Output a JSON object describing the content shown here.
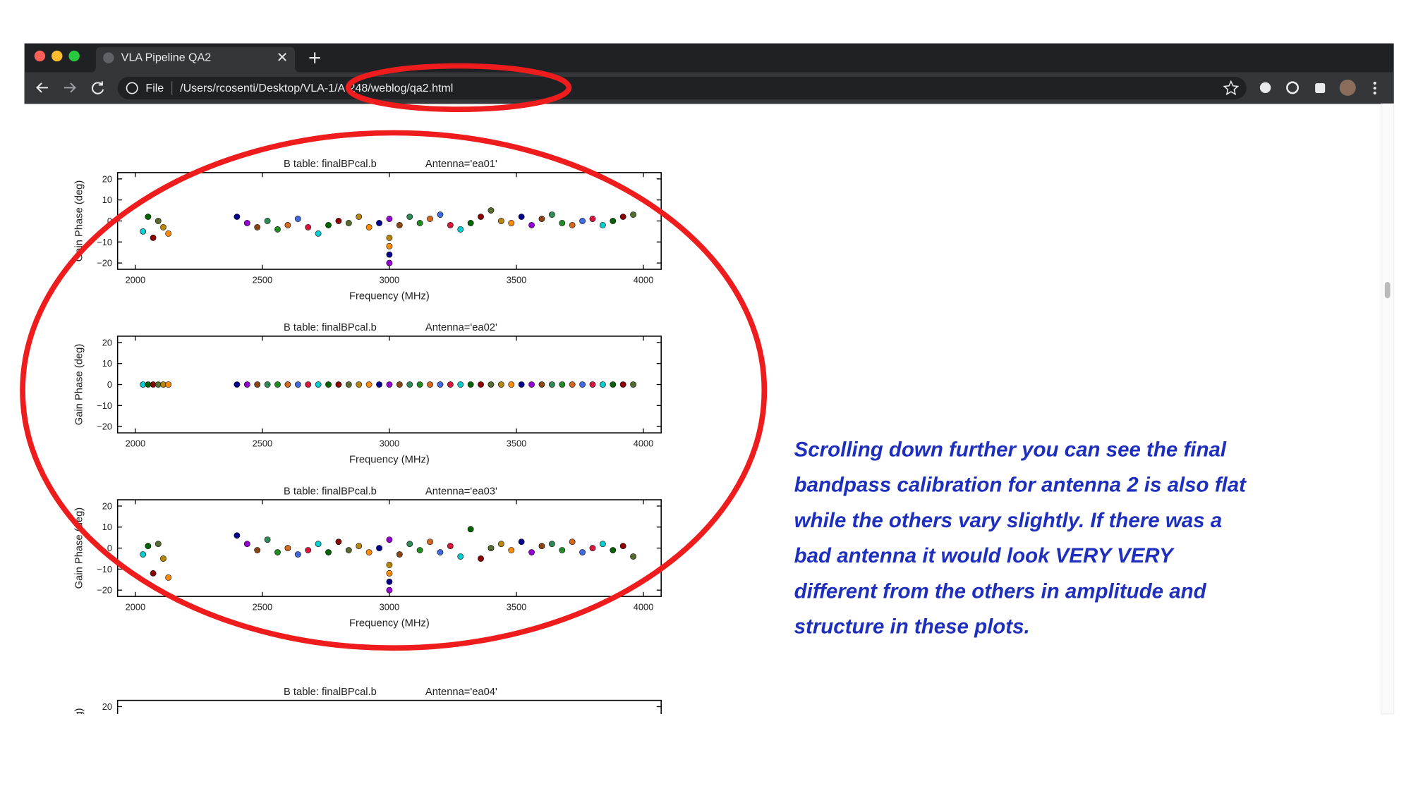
{
  "browser": {
    "tab_title": "VLA Pipeline QA2",
    "url_scheme": "File",
    "url": "/Users/rcosenti/Desktop/VLA-1/A-248/weblog/qa2.html"
  },
  "palette": [
    "#00ced1",
    "#006400",
    "#8b0000",
    "#556b2f",
    "#b8860b",
    "#ff8c00",
    "#00008b",
    "#9400d3",
    "#8b4513",
    "#2e8b57",
    "#228b22",
    "#d2691e",
    "#4169e1",
    "#dc143c"
  ],
  "plots": [
    {
      "title": "B table: finalBPcal.b",
      "antenna": "Antenna='ea01'",
      "y_label": "Gain Phase (deg)",
      "x_label": "Frequency (MHz)",
      "xlim": [
        1930,
        4070
      ],
      "ylim": [
        -23,
        23
      ],
      "xticks": [
        2000,
        2500,
        3000,
        3500,
        4000
      ],
      "yticks": [
        20,
        10,
        0,
        {
          "value": -10,
          "label": "−10"
        },
        {
          "value": -20,
          "label": "−20"
        }
      ],
      "x": [
        2030,
        2050,
        2070,
        2090,
        2110,
        2130,
        2400,
        2440,
        2480,
        2520,
        2560,
        2600,
        2640,
        2680,
        2720,
        2760,
        2800,
        2840,
        2880,
        2920,
        2960,
        3000,
        3040,
        3080,
        3120,
        3160,
        3200,
        3240,
        3280,
        3320,
        3360,
        3400,
        3440,
        3480,
        3520,
        3560,
        3600,
        3640,
        3680,
        3720,
        3760,
        3800,
        3840,
        3880,
        3920,
        3960,
        3000,
        3000,
        3000,
        3000
      ],
      "y": [
        -5,
        2,
        -8,
        0,
        -3,
        -6,
        2,
        -1,
        -3,
        0,
        -4,
        -2,
        1,
        -3,
        -6,
        -2,
        0,
        -1,
        2,
        -3,
        -1,
        1,
        -2,
        2,
        -1,
        1,
        3,
        -2,
        -4,
        -1,
        2,
        5,
        0,
        -1,
        2,
        -2,
        1,
        3,
        -1,
        -2,
        0,
        1,
        -2,
        0,
        2,
        3,
        -8,
        -12,
        -16,
        -20
      ]
    },
    {
      "title": "B table: finalBPcal.b",
      "antenna": "Antenna='ea02'",
      "y_label": "Gain Phase (deg)",
      "x_label": "Frequency (MHz)",
      "xlim": [
        1930,
        4070
      ],
      "ylim": [
        -23,
        23
      ],
      "xticks": [
        2000,
        2500,
        3000,
        3500,
        4000
      ],
      "yticks": [
        20,
        10,
        0,
        {
          "value": -10,
          "label": "−10"
        },
        {
          "value": -20,
          "label": "−20"
        }
      ],
      "x": [
        2030,
        2050,
        2070,
        2090,
        2110,
        2130,
        2400,
        2440,
        2480,
        2520,
        2560,
        2600,
        2640,
        2680,
        2720,
        2760,
        2800,
        2840,
        2880,
        2920,
        2960,
        3000,
        3040,
        3080,
        3120,
        3160,
        3200,
        3240,
        3280,
        3320,
        3360,
        3400,
        3440,
        3480,
        3520,
        3560,
        3600,
        3640,
        3680,
        3720,
        3760,
        3800,
        3840,
        3880,
        3920,
        3960
      ],
      "y": [
        0,
        0,
        0,
        0,
        0,
        0,
        0,
        0,
        0,
        0,
        0,
        0,
        0,
        0,
        0,
        0,
        0,
        0,
        0,
        0,
        0,
        0,
        0,
        0,
        0,
        0,
        0,
        0,
        0,
        0,
        0,
        0,
        0,
        0,
        0,
        0,
        0,
        0,
        0,
        0,
        0,
        0,
        0,
        0,
        0,
        0
      ]
    },
    {
      "title": "B table: finalBPcal.b",
      "antenna": "Antenna='ea03'",
      "y_label": "Gain Phase (deg)",
      "x_label": "Frequency (MHz)",
      "xlim": [
        1930,
        4070
      ],
      "ylim": [
        -23,
        23
      ],
      "xticks": [
        2000,
        2500,
        3000,
        3500,
        4000
      ],
      "yticks": [
        20,
        10,
        0,
        {
          "value": -10,
          "label": "−10"
        },
        {
          "value": -20,
          "label": "−20"
        }
      ],
      "x": [
        2030,
        2050,
        2070,
        2090,
        2110,
        2130,
        2400,
        2440,
        2480,
        2520,
        2560,
        2600,
        2640,
        2680,
        2720,
        2760,
        2800,
        2840,
        2880,
        2920,
        2960,
        3000,
        3040,
        3080,
        3120,
        3160,
        3200,
        3240,
        3280,
        3320,
        3360,
        3400,
        3440,
        3480,
        3520,
        3560,
        3600,
        3640,
        3680,
        3720,
        3760,
        3800,
        3840,
        3880,
        3920,
        3960,
        3000,
        3000,
        3000,
        3000
      ],
      "y": [
        -3,
        1,
        -12,
        2,
        -5,
        -14,
        6,
        2,
        -1,
        4,
        -2,
        0,
        -3,
        -1,
        2,
        -2,
        3,
        -1,
        1,
        -2,
        0,
        4,
        -3,
        2,
        -1,
        3,
        -2,
        1,
        -4,
        9,
        -5,
        0,
        2,
        -1,
        3,
        -2,
        1,
        2,
        -1,
        3,
        -2,
        0,
        2,
        -1,
        1,
        -4,
        -8,
        -12,
        -16,
        -20
      ]
    },
    {
      "title": "B table: finalBPcal.b",
      "antenna": "Antenna='ea04'",
      "y_label": "Gain Phase (deg)",
      "xlim": [
        1930,
        4070
      ],
      "ylim": [
        -23,
        23
      ],
      "yticks": [
        20
      ]
    }
  ],
  "annotation": [
    "Scrolling down further you can see the final",
    "bandpass calibration for antenna 2 is also flat",
    "while the others vary slightly. If there was a",
    "bad antenna it would look VERY VERY",
    "different from the others in amplitude and",
    "structure in these plots."
  ]
}
